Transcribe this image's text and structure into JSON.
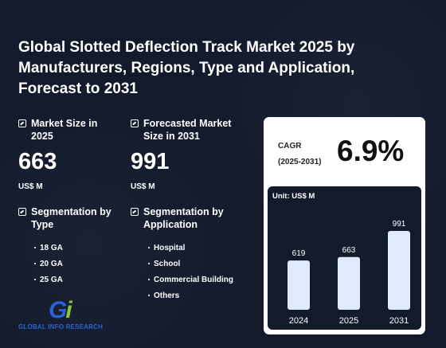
{
  "title": "Global Slotted Deflection Track Market 2025 by Manufacturers, Regions, Type and Application, Forecast to 2031",
  "market_size": {
    "label": "Market Size in 2025",
    "value": "663",
    "unit": "US$ M"
  },
  "forecast": {
    "label": "Forecasted Market Size in 2031",
    "value": "991",
    "unit": "US$ M"
  },
  "seg_type": {
    "label": "Segmentation by Type",
    "items": [
      "18 GA",
      "20 GA",
      "25 GA"
    ]
  },
  "seg_app": {
    "label": "Segmentation by Application",
    "items": [
      "Hospital",
      "School",
      "Commercial Building",
      "Others"
    ]
  },
  "cagr": {
    "label_line1": "CAGR",
    "label_line2": "(2025-2031)",
    "value": "6.9%"
  },
  "logo": {
    "mark": "Gi",
    "brand": "GLOBAL INFO RESEARCH"
  },
  "chart_data": {
    "type": "bar",
    "categories": [
      "2024",
      "2025",
      "2031"
    ],
    "values": [
      619,
      663,
      991
    ],
    "unit_label": "Unit: US$ M",
    "bar_color": "#dfeafc"
  }
}
